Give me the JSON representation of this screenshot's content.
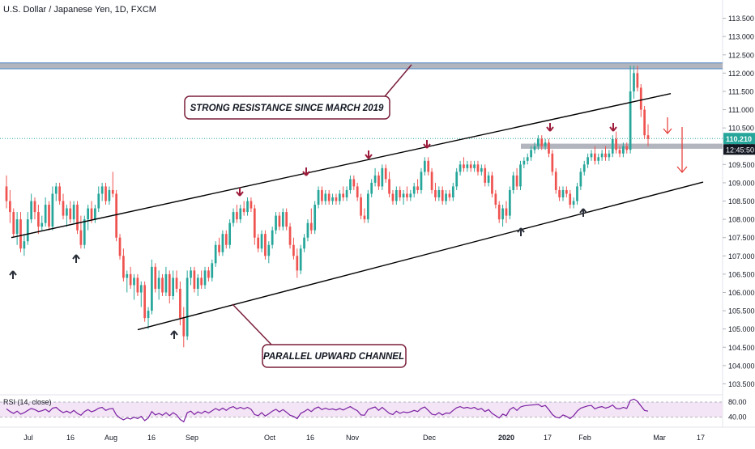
{
  "header": {
    "symbol_title": "U.S. Dollar / Japanese Yen, 1D, FXCM"
  },
  "colors": {
    "up": "#26a69a",
    "down": "#ef5350",
    "arrow_up": "#2a2e39",
    "arrow_down": "#9c1b3a",
    "annotation_border": "#7a1f3a",
    "resistance_zone": "#b2b5be",
    "resistance_edge": "#4a86c5",
    "rsi_line": "#7b1fa2",
    "rsi_band": "#f3e5f5",
    "price_tag": "#26a69a",
    "time_tag": "#131722",
    "channel": "#000000",
    "dotted_price": "#26a69a"
  },
  "annotations": {
    "resistance": "STRONG RESISTANCE SINCE MARCH 2019",
    "channel": "PARALLEL UPWARD CHANNEL"
  },
  "price_tag": {
    "price": "110.210",
    "countdown": "12:45:50"
  },
  "rsi_panel": {
    "label": "RSI (14, close)",
    "levels": [
      "80.00",
      "40.00"
    ]
  },
  "chart_data": {
    "type": "candlestick",
    "title": "U.S. Dollar / Japanese Yen, 1D, FXCM",
    "y_axis": {
      "range": [
        103.2,
        114.0
      ],
      "ticks": [
        "113.500",
        "113.000",
        "112.500",
        "112.000",
        "111.500",
        "111.000",
        "110.500",
        "110.000",
        "109.500",
        "109.000",
        "108.500",
        "108.000",
        "107.500",
        "107.000",
        "106.500",
        "106.000",
        "105.500",
        "105.000",
        "104.500",
        "104.000",
        "103.500"
      ]
    },
    "x_axis": {
      "ticks": [
        "Jul",
        "16",
        "Aug",
        "16",
        "Sep",
        "Oct",
        "16",
        "Nov",
        "Dec",
        "2020",
        "17",
        "Feb",
        "Mar",
        "17"
      ]
    },
    "resistance_zone": [
      112.12,
      112.28
    ],
    "support_zone": [
      109.93,
      110.07
    ],
    "current_price": 110.21,
    "channel": {
      "upper": {
        "start": [
          107.5,
          108.78
        ],
        "end": [
          111.35,
          111.44
        ]
      },
      "lower": {
        "start": [
          104.98,
          104.98
        ],
        "end": [
          107.85,
          109.02
        ]
      }
    },
    "ohlc": [
      [
        108.9,
        109.2,
        108.3,
        108.5
      ],
      [
        108.5,
        108.8,
        107.9,
        108.2
      ],
      [
        108.2,
        108.3,
        107.5,
        107.6
      ],
      [
        107.6,
        108.2,
        107.3,
        108.0
      ],
      [
        108.0,
        108.2,
        107.1,
        107.2
      ],
      [
        107.2,
        107.6,
        107.0,
        107.4
      ],
      [
        107.4,
        108.2,
        107.3,
        108.0
      ],
      [
        108.0,
        108.7,
        107.9,
        108.5
      ],
      [
        108.5,
        108.6,
        108.0,
        108.2
      ],
      [
        108.2,
        108.4,
        107.6,
        107.8
      ],
      [
        107.8,
        108.1,
        107.7,
        107.9
      ],
      [
        107.9,
        108.6,
        107.8,
        108.4
      ],
      [
        108.4,
        108.5,
        107.7,
        107.8
      ],
      [
        107.8,
        108.9,
        107.7,
        108.7
      ],
      [
        108.7,
        109.0,
        108.5,
        108.9
      ],
      [
        108.9,
        109.0,
        108.4,
        108.5
      ],
      [
        108.5,
        108.7,
        108.0,
        108.1
      ],
      [
        108.1,
        108.4,
        107.8,
        108.3
      ],
      [
        108.3,
        108.5,
        107.9,
        108.0
      ],
      [
        108.0,
        108.5,
        107.9,
        108.4
      ],
      [
        108.4,
        108.5,
        107.6,
        107.7
      ],
      [
        107.7,
        108.1,
        107.2,
        107.3
      ],
      [
        107.3,
        108.1,
        107.2,
        108.0
      ],
      [
        108.0,
        108.4,
        107.7,
        108.3
      ],
      [
        108.3,
        108.5,
        107.9,
        108.0
      ],
      [
        108.0,
        108.4,
        107.9,
        108.3
      ],
      [
        108.3,
        108.9,
        108.2,
        108.7
      ],
      [
        108.7,
        109.0,
        108.5,
        108.9
      ],
      [
        108.9,
        109.0,
        108.4,
        108.5
      ],
      [
        108.5,
        108.9,
        108.4,
        108.8
      ],
      [
        108.8,
        109.3,
        108.6,
        108.7
      ],
      [
        108.7,
        108.8,
        107.4,
        107.5
      ],
      [
        107.5,
        107.6,
        106.9,
        107.0
      ],
      [
        107.0,
        107.2,
        106.3,
        106.4
      ],
      [
        106.4,
        106.6,
        106.0,
        106.5
      ],
      [
        106.5,
        106.7,
        106.1,
        106.2
      ],
      [
        106.2,
        106.5,
        105.8,
        106.4
      ],
      [
        106.4,
        106.5,
        105.9,
        106.0
      ],
      [
        106.0,
        106.3,
        105.6,
        106.2
      ],
      [
        106.2,
        106.3,
        105.2,
        105.3
      ],
      [
        105.3,
        105.6,
        105.0,
        105.5
      ],
      [
        105.5,
        106.9,
        105.4,
        106.7
      ],
      [
        106.7,
        106.8,
        106.0,
        106.1
      ],
      [
        106.1,
        106.6,
        105.8,
        106.4
      ],
      [
        106.4,
        106.5,
        105.9,
        106.0
      ],
      [
        106.0,
        106.7,
        105.9,
        106.5
      ],
      [
        106.5,
        106.6,
        105.7,
        105.9
      ],
      [
        105.9,
        106.6,
        105.8,
        106.4
      ],
      [
        106.4,
        106.6,
        106.0,
        106.1
      ],
      [
        106.1,
        106.3,
        105.1,
        105.3
      ],
      [
        105.3,
        105.6,
        104.5,
        104.8
      ],
      [
        104.8,
        106.6,
        104.7,
        106.4
      ],
      [
        106.4,
        106.7,
        106.2,
        106.6
      ],
      [
        106.6,
        106.7,
        106.0,
        106.1
      ],
      [
        106.1,
        106.5,
        105.9,
        106.4
      ],
      [
        106.4,
        106.6,
        106.1,
        106.2
      ],
      [
        106.2,
        106.7,
        106.1,
        106.6
      ],
      [
        106.6,
        106.7,
        106.3,
        106.4
      ],
      [
        106.4,
        106.9,
        106.3,
        106.8
      ],
      [
        106.8,
        107.4,
        106.7,
        107.3
      ],
      [
        107.3,
        107.5,
        107.0,
        107.1
      ],
      [
        107.1,
        107.7,
        107.0,
        107.6
      ],
      [
        107.6,
        107.7,
        107.2,
        107.3
      ],
      [
        107.3,
        108.0,
        107.2,
        107.9
      ],
      [
        107.9,
        108.3,
        107.8,
        108.2
      ],
      [
        108.2,
        108.4,
        107.9,
        108.0
      ],
      [
        108.0,
        108.4,
        107.9,
        108.3
      ],
      [
        108.3,
        108.5,
        108.1,
        108.2
      ],
      [
        108.2,
        108.6,
        108.1,
        108.5
      ],
      [
        108.5,
        108.6,
        108.2,
        108.3
      ],
      [
        108.3,
        108.4,
        107.3,
        107.5
      ],
      [
        107.5,
        107.6,
        107.1,
        107.2
      ],
      [
        107.2,
        107.7,
        107.1,
        107.6
      ],
      [
        107.6,
        107.7,
        106.9,
        107.0
      ],
      [
        107.0,
        107.4,
        106.8,
        107.3
      ],
      [
        107.3,
        107.8,
        107.2,
        107.7
      ],
      [
        107.7,
        108.2,
        107.6,
        108.1
      ],
      [
        108.1,
        108.2,
        107.7,
        107.8
      ],
      [
        107.8,
        108.3,
        107.7,
        108.2
      ],
      [
        108.2,
        108.3,
        107.7,
        107.8
      ],
      [
        107.8,
        107.9,
        107.2,
        107.3
      ],
      [
        107.3,
        107.5,
        106.9,
        107.0
      ],
      [
        107.0,
        107.2,
        106.4,
        106.6
      ],
      [
        106.6,
        107.3,
        106.5,
        107.2
      ],
      [
        107.2,
        107.6,
        107.1,
        107.5
      ],
      [
        107.5,
        108.0,
        107.4,
        107.9
      ],
      [
        107.9,
        108.3,
        107.6,
        107.7
      ],
      [
        107.7,
        108.5,
        107.6,
        108.4
      ],
      [
        108.4,
        108.9,
        108.3,
        108.8
      ],
      [
        108.8,
        108.9,
        108.4,
        108.5
      ],
      [
        108.5,
        108.8,
        108.4,
        108.7
      ],
      [
        108.7,
        108.8,
        108.4,
        108.5
      ],
      [
        108.5,
        108.7,
        108.4,
        108.6
      ],
      [
        108.6,
        108.7,
        108.4,
        108.5
      ],
      [
        108.5,
        108.8,
        108.4,
        108.7
      ],
      [
        108.7,
        108.9,
        108.5,
        108.6
      ],
      [
        108.6,
        108.9,
        108.5,
        108.8
      ],
      [
        108.8,
        109.2,
        108.7,
        109.1
      ],
      [
        109.1,
        109.2,
        108.8,
        108.9
      ],
      [
        108.9,
        109.0,
        108.5,
        108.6
      ],
      [
        108.6,
        108.7,
        108.0,
        108.1
      ],
      [
        108.1,
        108.3,
        107.9,
        108.0
      ],
      [
        108.0,
        108.8,
        107.9,
        108.7
      ],
      [
        108.7,
        109.1,
        108.6,
        109.0
      ],
      [
        109.0,
        109.4,
        108.9,
        109.2
      ],
      [
        109.2,
        109.3,
        108.8,
        108.9
      ],
      [
        108.9,
        109.5,
        108.8,
        109.4
      ],
      [
        109.4,
        109.5,
        109.0,
        109.1
      ],
      [
        109.1,
        109.3,
        108.6,
        108.7
      ],
      [
        108.7,
        108.8,
        108.4,
        108.5
      ],
      [
        108.5,
        108.9,
        108.4,
        108.8
      ],
      [
        108.8,
        108.9,
        108.5,
        108.6
      ],
      [
        108.6,
        108.8,
        108.4,
        108.7
      ],
      [
        108.7,
        108.9,
        108.5,
        108.6
      ],
      [
        108.6,
        108.8,
        108.5,
        108.7
      ],
      [
        108.7,
        109.0,
        108.6,
        108.9
      ],
      [
        108.9,
        109.1,
        108.7,
        108.8
      ],
      [
        108.8,
        109.4,
        108.7,
        109.3
      ],
      [
        109.3,
        109.7,
        109.2,
        109.6
      ],
      [
        109.6,
        109.7,
        109.2,
        109.3
      ],
      [
        109.3,
        109.4,
        108.7,
        108.8
      ],
      [
        108.8,
        109.0,
        108.5,
        108.6
      ],
      [
        108.6,
        108.9,
        108.5,
        108.8
      ],
      [
        108.8,
        108.9,
        108.4,
        108.5
      ],
      [
        108.5,
        108.8,
        108.4,
        108.7
      ],
      [
        108.7,
        108.8,
        108.5,
        108.6
      ],
      [
        108.6,
        109.0,
        108.5,
        108.9
      ],
      [
        108.9,
        109.4,
        108.8,
        109.3
      ],
      [
        109.3,
        109.6,
        109.2,
        109.5
      ],
      [
        109.5,
        109.7,
        109.3,
        109.4
      ],
      [
        109.4,
        109.6,
        109.3,
        109.5
      ],
      [
        109.5,
        109.6,
        109.3,
        109.4
      ],
      [
        109.4,
        109.6,
        109.3,
        109.5
      ],
      [
        109.5,
        109.6,
        109.2,
        109.3
      ],
      [
        109.3,
        109.5,
        109.2,
        109.4
      ],
      [
        109.4,
        109.5,
        108.9,
        109.0
      ],
      [
        109.0,
        109.3,
        108.9,
        109.2
      ],
      [
        109.2,
        109.3,
        108.6,
        108.7
      ],
      [
        108.7,
        108.8,
        108.3,
        108.4
      ],
      [
        108.4,
        108.5,
        107.9,
        108.0
      ],
      [
        108.0,
        108.4,
        107.8,
        108.3
      ],
      [
        108.3,
        108.5,
        107.9,
        108.1
      ],
      [
        108.1,
        108.9,
        108.0,
        108.8
      ],
      [
        108.8,
        109.3,
        108.7,
        109.2
      ],
      [
        109.2,
        109.4,
        108.8,
        108.9
      ],
      [
        108.9,
        109.6,
        108.8,
        109.5
      ],
      [
        109.5,
        109.7,
        109.4,
        109.6
      ],
      [
        109.6,
        109.8,
        109.5,
        109.7
      ],
      [
        109.7,
        110.0,
        109.6,
        109.9
      ],
      [
        109.9,
        110.1,
        109.8,
        110.0
      ],
      [
        110.0,
        110.3,
        109.9,
        110.2
      ],
      [
        110.2,
        110.3,
        109.9,
        110.0
      ],
      [
        110.0,
        110.2,
        109.9,
        110.1
      ],
      [
        110.1,
        110.2,
        109.7,
        109.8
      ],
      [
        109.8,
        109.9,
        109.2,
        109.3
      ],
      [
        109.3,
        109.4,
        108.7,
        108.8
      ],
      [
        108.8,
        108.9,
        108.5,
        108.6
      ],
      [
        108.6,
        108.9,
        108.5,
        108.8
      ],
      [
        108.8,
        108.9,
        108.6,
        108.7
      ],
      [
        108.7,
        108.8,
        108.3,
        108.4
      ],
      [
        108.4,
        108.6,
        108.3,
        108.5
      ],
      [
        108.5,
        109.0,
        108.4,
        108.9
      ],
      [
        108.9,
        109.4,
        108.8,
        109.3
      ],
      [
        109.3,
        109.6,
        109.2,
        109.5
      ],
      [
        109.5,
        109.8,
        109.4,
        109.7
      ],
      [
        109.7,
        109.9,
        109.6,
        109.8
      ],
      [
        109.8,
        110.0,
        109.5,
        109.6
      ],
      [
        109.6,
        109.8,
        109.5,
        109.7
      ],
      [
        109.7,
        109.9,
        109.6,
        109.8
      ],
      [
        109.8,
        110.0,
        109.6,
        109.7
      ],
      [
        109.7,
        109.9,
        109.6,
        109.8
      ],
      [
        109.8,
        110.3,
        109.7,
        110.2
      ],
      [
        110.2,
        110.4,
        109.8,
        109.9
      ],
      [
        109.9,
        110.0,
        109.7,
        109.8
      ],
      [
        109.8,
        110.1,
        109.7,
        110.0
      ],
      [
        110.0,
        110.1,
        109.8,
        109.9
      ],
      [
        109.9,
        112.2,
        109.8,
        111.5
      ],
      [
        111.5,
        112.2,
        111.3,
        112.0
      ],
      [
        112.0,
        112.2,
        111.5,
        111.6
      ],
      [
        111.6,
        111.7,
        110.8,
        111.0
      ],
      [
        111.0,
        111.1,
        110.2,
        110.3
      ],
      [
        110.3,
        110.6,
        110.0,
        110.2
      ]
    ],
    "rsi": {
      "levels": [
        80.0,
        40.0
      ],
      "values": [
        62,
        55,
        50,
        56,
        48,
        52,
        58,
        63,
        60,
        55,
        57,
        61,
        54,
        64,
        66,
        58,
        52,
        56,
        51,
        58,
        50,
        45,
        55,
        60,
        54,
        58,
        64,
        66,
        58,
        62,
        63,
        46,
        38,
        33,
        38,
        35,
        40,
        36,
        42,
        31,
        38,
        55,
        46,
        50,
        45,
        52,
        44,
        52,
        46,
        34,
        28,
        52,
        56,
        47,
        54,
        50,
        56,
        51,
        57,
        63,
        58,
        64,
        58,
        65,
        68,
        62,
        66,
        62,
        66,
        61,
        47,
        44,
        52,
        43,
        49,
        56,
        61,
        54,
        60,
        53,
        45,
        42,
        36,
        50,
        55,
        61,
        55,
        63,
        67,
        60,
        64,
        60,
        62,
        59,
        63,
        59,
        64,
        68,
        62,
        57,
        46,
        45,
        60,
        64,
        67,
        58,
        66,
        58,
        50,
        47,
        56,
        50,
        54,
        52,
        54,
        58,
        55,
        63,
        67,
        58,
        48,
        46,
        52,
        46,
        51,
        50,
        58,
        65,
        68,
        64,
        66,
        63,
        66,
        60,
        63,
        55,
        60,
        50,
        44,
        38,
        48,
        44,
        60,
        66,
        58,
        67,
        70,
        71,
        72,
        73,
        74,
        68,
        71,
        60,
        47,
        40,
        38,
        46,
        42,
        36,
        44,
        56,
        64,
        67,
        70,
        71,
        62,
        66,
        68,
        64,
        67,
        72,
        63,
        62,
        66,
        63,
        84,
        88,
        82,
        70,
        58,
        56
      ]
    }
  }
}
